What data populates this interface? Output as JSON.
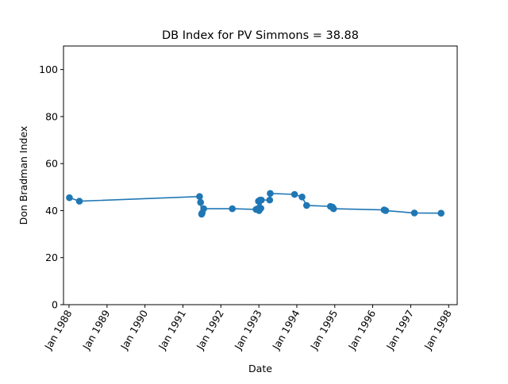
{
  "chart_data": {
    "type": "line",
    "title": "DB Index for PV Simmons = 38.88",
    "xlabel": "Date",
    "ylabel": "Don Bradman Index",
    "ylim": [
      0,
      110
    ],
    "xlim": [
      "1987-11-09",
      "1998-03-24"
    ],
    "x_ticks": [
      {
        "date": "1988-01-01",
        "label": "Jan 1988"
      },
      {
        "date": "1989-01-01",
        "label": "Jan 1989"
      },
      {
        "date": "1990-01-01",
        "label": "Jan 1990"
      },
      {
        "date": "1991-01-01",
        "label": "Jan 1991"
      },
      {
        "date": "1992-01-01",
        "label": "Jan 1992"
      },
      {
        "date": "1993-01-01",
        "label": "Jan 1993"
      },
      {
        "date": "1994-01-01",
        "label": "Jan 1994"
      },
      {
        "date": "1995-01-01",
        "label": "Jan 1995"
      },
      {
        "date": "1996-01-01",
        "label": "Jan 1996"
      },
      {
        "date": "1997-01-01",
        "label": "Jan 1997"
      },
      {
        "date": "1998-01-01",
        "label": "Jan 1998"
      }
    ],
    "y_ticks": [
      0,
      20,
      40,
      60,
      80,
      100
    ],
    "grid": false,
    "series": [
      {
        "color": "#1f77b4",
        "points": [
          {
            "x": "1988-01-05",
            "y": 45.5
          },
          {
            "x": "1988-04-10",
            "y": 44.0
          },
          {
            "x": "1991-06-10",
            "y": 46.0
          },
          {
            "x": "1991-06-20",
            "y": 43.5
          },
          {
            "x": "1991-06-30",
            "y": 38.5
          },
          {
            "x": "1991-07-05",
            "y": 39.0
          },
          {
            "x": "1991-07-20",
            "y": 40.8
          },
          {
            "x": "1992-04-20",
            "y": 40.8
          },
          {
            "x": "1992-12-05",
            "y": 40.5
          },
          {
            "x": "1992-12-20",
            "y": 40.8
          },
          {
            "x": "1992-12-28",
            "y": 44.0
          },
          {
            "x": "1993-01-03",
            "y": 40.0
          },
          {
            "x": "1993-01-12",
            "y": 44.5
          },
          {
            "x": "1993-01-20",
            "y": 41.0
          },
          {
            "x": "1993-01-25",
            "y": 44.5
          },
          {
            "x": "1993-04-15",
            "y": 44.5
          },
          {
            "x": "1993-04-20",
            "y": 47.3
          },
          {
            "x": "1993-12-10",
            "y": 46.9
          },
          {
            "x": "1994-02-20",
            "y": 45.8
          },
          {
            "x": "1994-04-05",
            "y": 42.2
          },
          {
            "x": "1994-11-20",
            "y": 41.8
          },
          {
            "x": "1994-12-10",
            "y": 41.5
          },
          {
            "x": "1994-12-20",
            "y": 40.8
          },
          {
            "x": "1996-04-20",
            "y": 40.3
          },
          {
            "x": "1996-05-05",
            "y": 40.0
          },
          {
            "x": "1997-02-05",
            "y": 39.0
          },
          {
            "x": "1997-10-20",
            "y": 38.9
          }
        ]
      }
    ]
  }
}
